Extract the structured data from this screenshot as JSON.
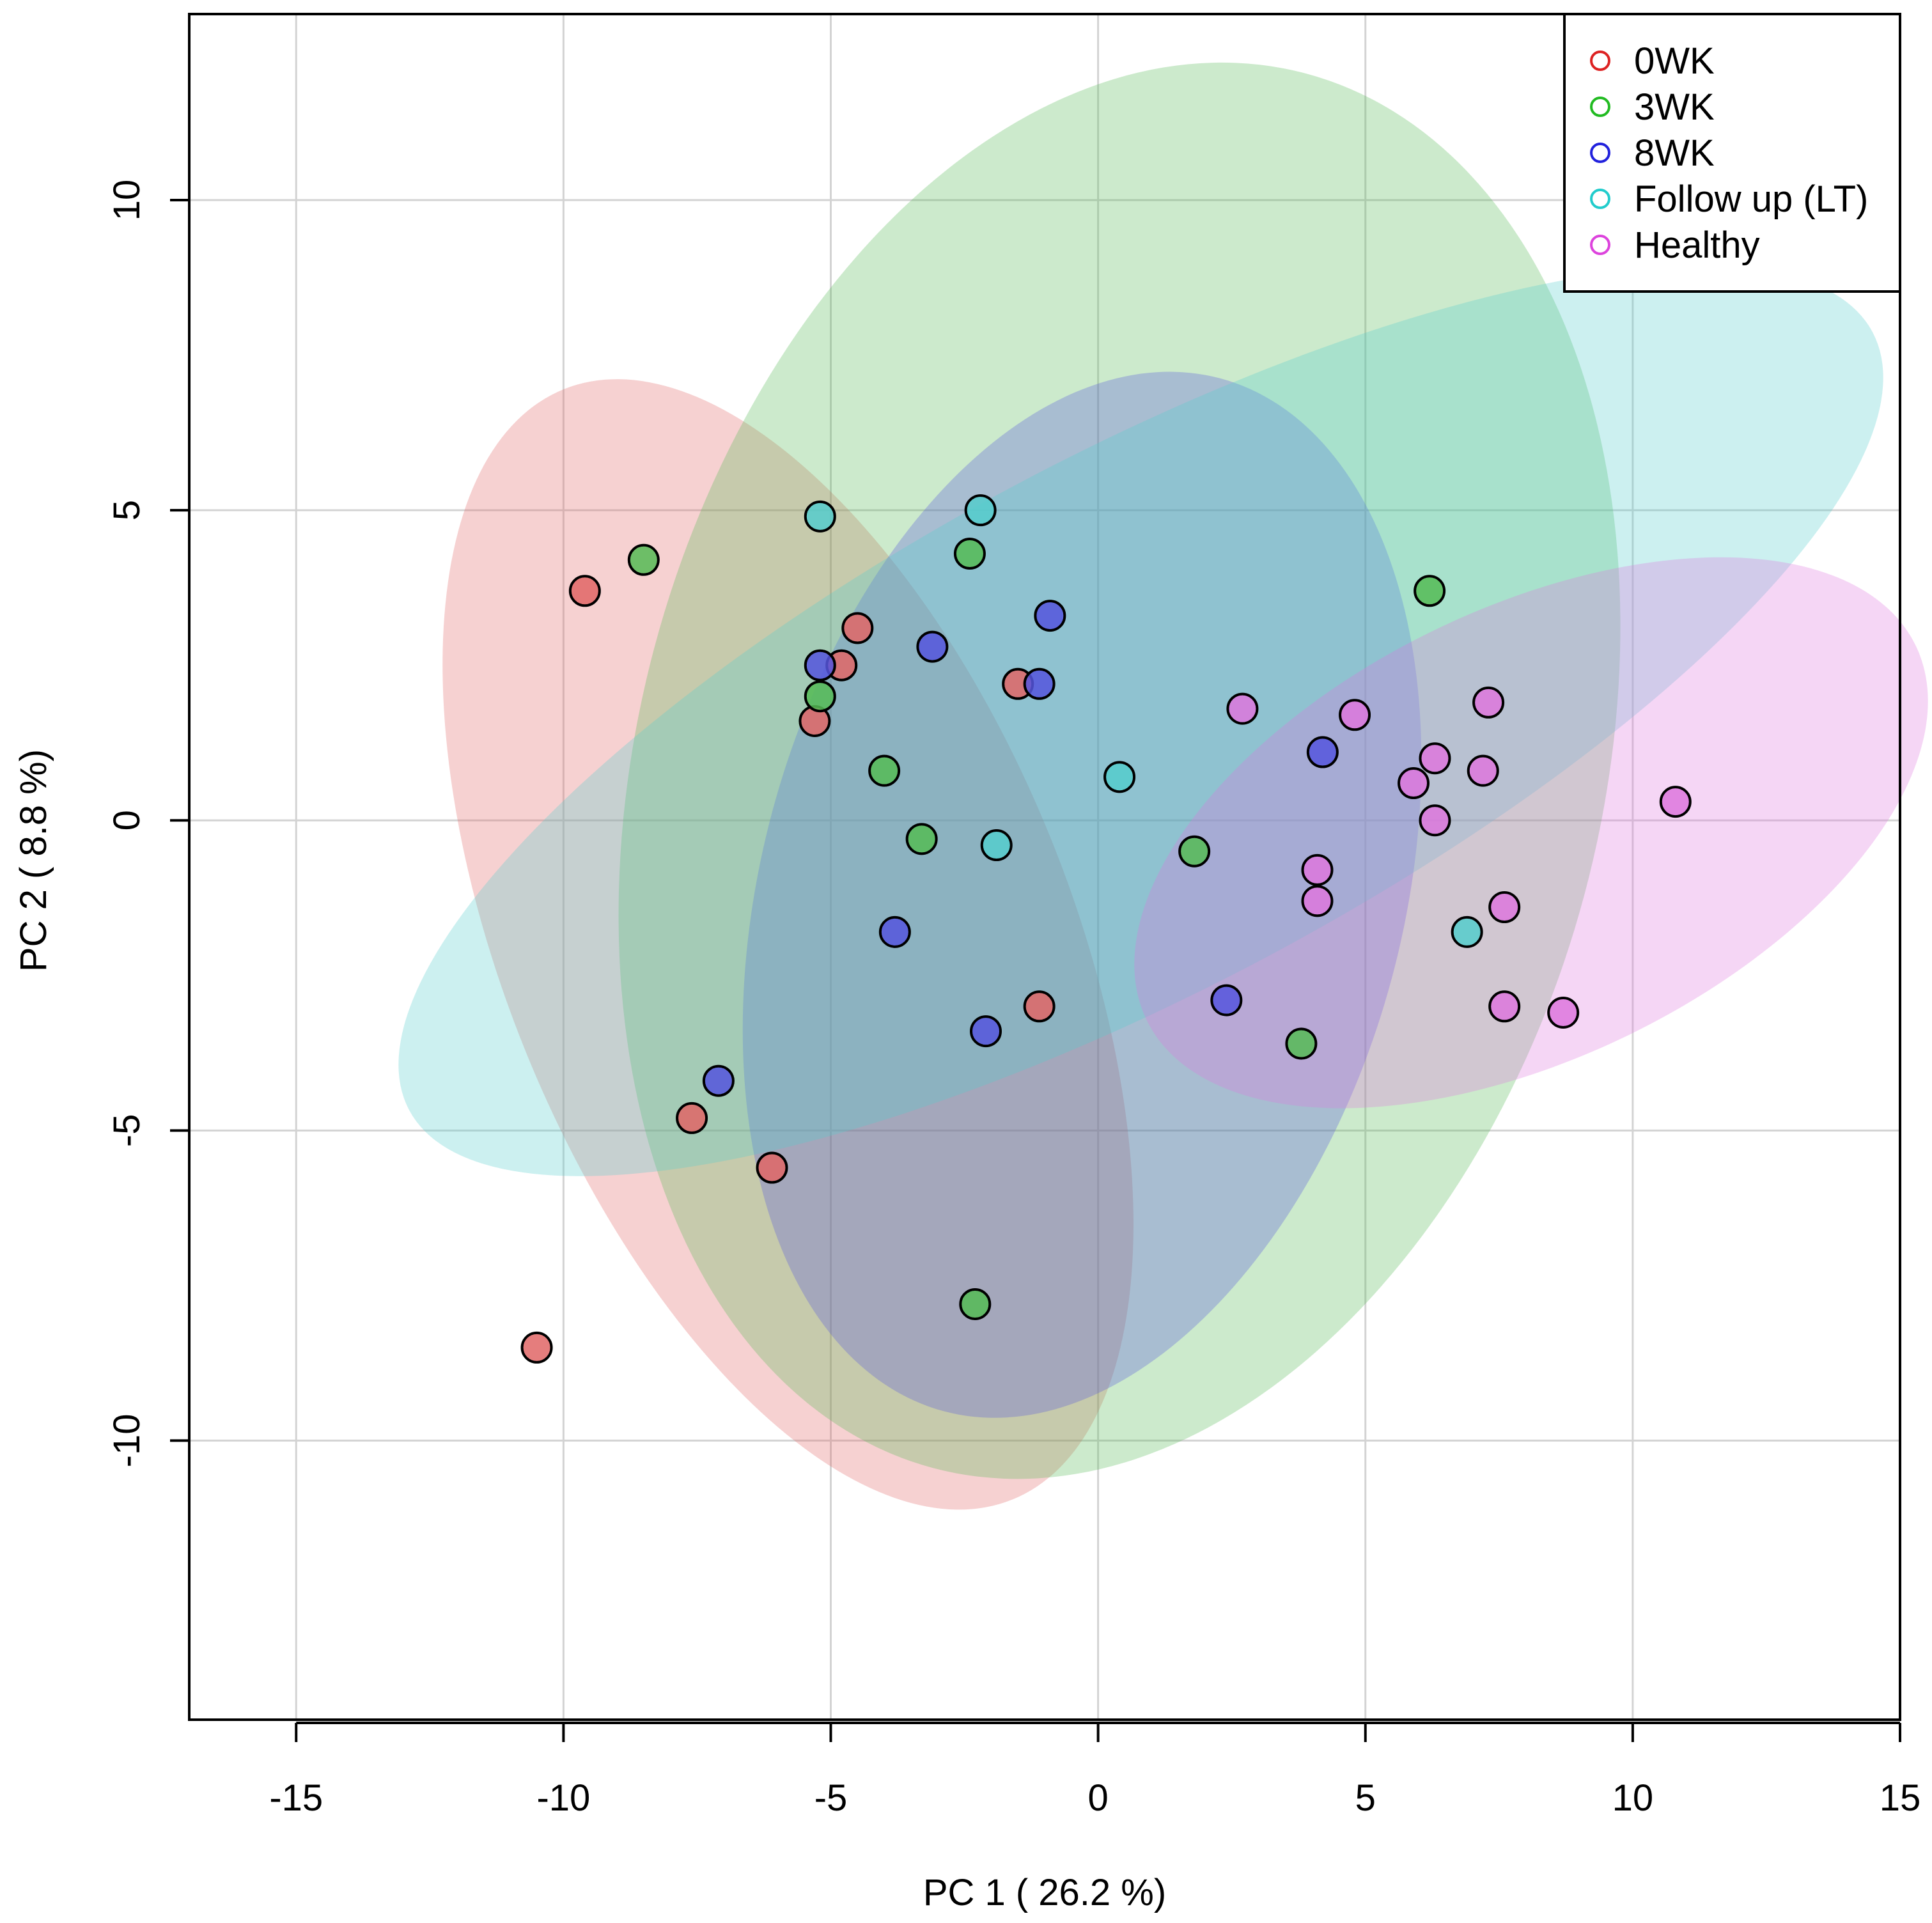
{
  "chart_data": {
    "type": "scatter",
    "title": "",
    "xlabel": "PC 1 ( 26.2 %)",
    "ylabel": "PC 2 ( 8.8 %)",
    "xlim": [
      -17,
      15
    ],
    "ylim": [
      -14.5,
      13
    ],
    "xticks": [
      -15,
      -10,
      -5,
      0,
      5,
      10,
      15
    ],
    "yticks": [
      -10,
      -5,
      0,
      5,
      10
    ],
    "grid": true,
    "legend_position": "top-right",
    "series": [
      {
        "name": "0WK",
        "color": "#e06666",
        "legend_color": "#dd2222",
        "ellipse": {
          "cx": -5.8,
          "cy": -2.0,
          "rx": 11.2,
          "ry": 5.3,
          "angle_deg": 68
        },
        "points": [
          [
            -9.6,
            3.7
          ],
          [
            -4.5,
            3.1
          ],
          [
            -4.8,
            2.5
          ],
          [
            -5.3,
            1.6
          ],
          [
            -1.5,
            2.2
          ],
          [
            -1.1,
            -3.0
          ],
          [
            -7.6,
            -4.8
          ],
          [
            -6.1,
            -5.6
          ],
          [
            -10.5,
            -8.5
          ]
        ]
      },
      {
        "name": "3WK",
        "color": "#55bb55",
        "legend_color": "#22bb22",
        "ellipse": {
          "cx": 0.4,
          "cy": 0.8,
          "rx": 13.5,
          "ry": 9.0,
          "angle_deg": -75
        },
        "points": [
          [
            -8.5,
            4.2
          ],
          [
            -2.4,
            4.3
          ],
          [
            -5.2,
            2.0
          ],
          [
            -4.0,
            0.8
          ],
          [
            -3.3,
            -0.3
          ],
          [
            1.8,
            -0.5
          ],
          [
            6.2,
            3.7
          ],
          [
            3.8,
            -3.6
          ],
          [
            -2.3,
            -7.8
          ]
        ]
      },
      {
        "name": "8WK",
        "color": "#5555dd",
        "legend_color": "#2222dd",
        "ellipse": {
          "cx": -0.3,
          "cy": -1.2,
          "rx": 10.0,
          "ry": 6.0,
          "angle_deg": -75
        },
        "points": [
          [
            -5.2,
            2.5
          ],
          [
            -3.1,
            2.8
          ],
          [
            -0.9,
            3.3
          ],
          [
            -1.1,
            2.2
          ],
          [
            4.2,
            1.1
          ],
          [
            -3.8,
            -1.8
          ],
          [
            -2.1,
            -3.4
          ],
          [
            2.4,
            -2.9
          ],
          [
            -7.1,
            -4.2
          ]
        ]
      },
      {
        "name": "Follow up (LT)",
        "color": "#55cccc",
        "legend_color": "#22cccc",
        "ellipse": {
          "cx": 0.8,
          "cy": 1.6,
          "rx": 15.5,
          "ry": 5.0,
          "angle_deg": -28
        },
        "points": [
          [
            -5.2,
            4.9
          ],
          [
            -2.2,
            5.0
          ],
          [
            0.4,
            0.7
          ],
          [
            -1.9,
            -0.4
          ],
          [
            6.9,
            -1.8
          ]
        ]
      },
      {
        "name": "Healthy",
        "color": "#dd77dd",
        "legend_color": "#dd44dd",
        "ellipse": {
          "cx": 8.1,
          "cy": -0.2,
          "rx": 8.0,
          "ry": 4.2,
          "angle_deg": -26
        },
        "points": [
          [
            2.7,
            1.8
          ],
          [
            4.8,
            1.7
          ],
          [
            7.3,
            1.9
          ],
          [
            6.3,
            1.0
          ],
          [
            7.2,
            0.8
          ],
          [
            5.9,
            0.6
          ],
          [
            6.3,
            0.0
          ],
          [
            10.8,
            0.3
          ],
          [
            4.1,
            -0.8
          ],
          [
            4.1,
            -1.3
          ],
          [
            7.6,
            -1.4
          ],
          [
            7.6,
            -3.0
          ],
          [
            8.7,
            -3.1
          ]
        ]
      }
    ]
  }
}
